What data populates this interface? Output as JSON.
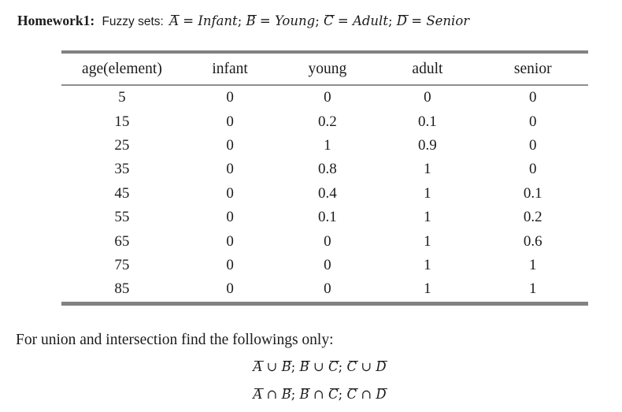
{
  "title": {
    "heading": "Homework1:",
    "subject": "Fuzzy sets:",
    "definition_tokens": [
      {
        "t": "A",
        "bar": true
      },
      {
        "t": " = "
      },
      {
        "t": "Infant",
        "it": true
      },
      {
        "t": "; "
      },
      {
        "t": "B",
        "bar": true
      },
      {
        "t": " = "
      },
      {
        "t": "Young",
        "it": true
      },
      {
        "t": "; "
      },
      {
        "t": "C",
        "bar": true
      },
      {
        "t": " = "
      },
      {
        "t": "Adult",
        "it": true
      },
      {
        "t": "; "
      },
      {
        "t": "D",
        "bar": true
      },
      {
        "t": " = "
      },
      {
        "t": "Senior",
        "it": true
      }
    ]
  },
  "table": {
    "headers": [
      "age(element)",
      "infant",
      "young",
      "adult",
      "senior"
    ],
    "rows": [
      [
        "5",
        "0",
        "0",
        "0",
        "0"
      ],
      [
        "15",
        "0",
        "0.2",
        "0.1",
        "0"
      ],
      [
        "25",
        "0",
        "1",
        "0.9",
        "0"
      ],
      [
        "35",
        "0",
        "0.8",
        "1",
        "0"
      ],
      [
        "45",
        "0",
        "0.4",
        "1",
        "0.1"
      ],
      [
        "55",
        "0",
        "0.1",
        "1",
        "0.2"
      ],
      [
        "65",
        "0",
        "0",
        "1",
        "0.6"
      ],
      [
        "75",
        "0",
        "0",
        "1",
        "1"
      ],
      [
        "85",
        "0",
        "0",
        "1",
        "1"
      ]
    ]
  },
  "instruction": "For union and intersection find the followings only:",
  "equations": {
    "union_tokens": [
      {
        "t": "A",
        "bar": true
      },
      {
        "t": " ∪ "
      },
      {
        "t": "B",
        "bar": true
      },
      {
        "t": "; "
      },
      {
        "t": "B",
        "bar": true
      },
      {
        "t": " ∪ "
      },
      {
        "t": "C",
        "bar": true
      },
      {
        "t": "; "
      },
      {
        "t": "C",
        "bar": true
      },
      {
        "t": " ∪ "
      },
      {
        "t": "D",
        "bar": true
      }
    ],
    "intersection_tokens": [
      {
        "t": "A",
        "bar": true
      },
      {
        "t": " ∩ "
      },
      {
        "t": "B",
        "bar": true
      },
      {
        "t": "; "
      },
      {
        "t": "B",
        "bar": true
      },
      {
        "t": " ∩ "
      },
      {
        "t": "C",
        "bar": true
      },
      {
        "t": "; "
      },
      {
        "t": "C",
        "bar": true
      },
      {
        "t": " ∩ "
      },
      {
        "t": "D",
        "bar": true
      }
    ]
  },
  "colors": {
    "border_gray": "#828282",
    "rule_gray": "#8f8f8f",
    "text": "#1b1b1b"
  }
}
